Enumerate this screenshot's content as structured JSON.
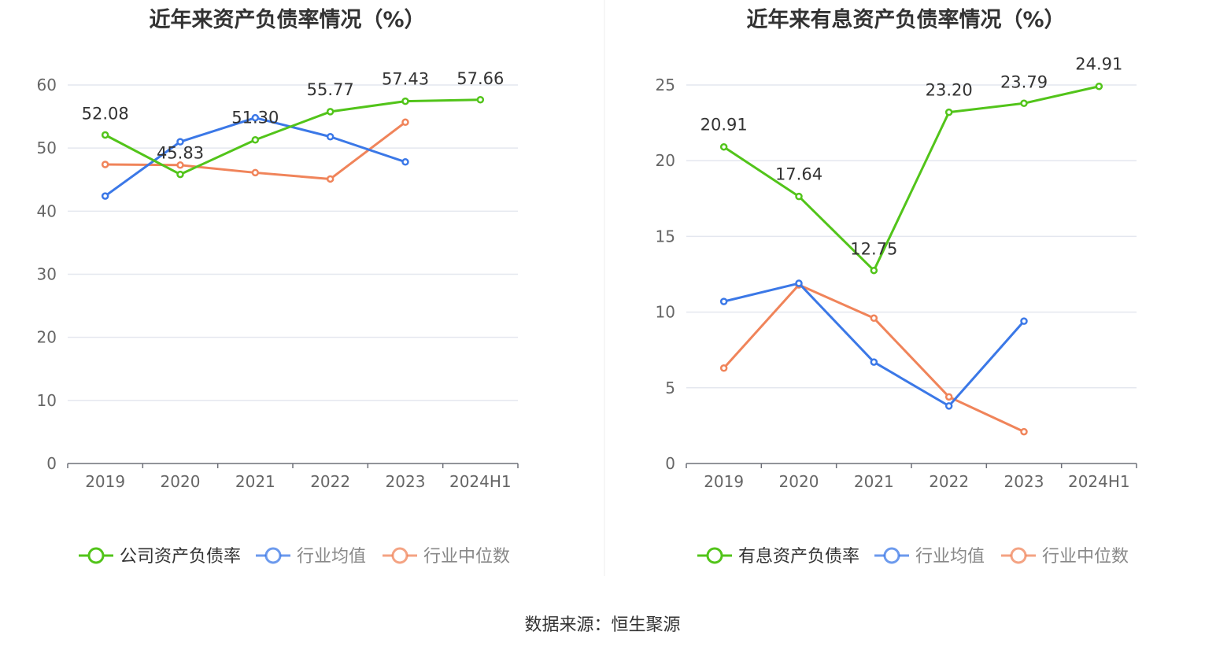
{
  "source_label": "数据来源：恒生聚源",
  "chart_data": [
    {
      "type": "line",
      "title": "近年来资产负债率情况（%）",
      "categories": [
        "2019",
        "2020",
        "2021",
        "2022",
        "2023",
        "2024H1"
      ],
      "ylim": [
        0,
        60
      ],
      "yticks": [
        0,
        10,
        20,
        30,
        40,
        50,
        60
      ],
      "grid": true,
      "legend_position": "bottom",
      "series": [
        {
          "name": "公司资产负债率",
          "color": "#52c41a",
          "values": [
            52.08,
            45.83,
            51.3,
            55.77,
            57.43,
            57.66
          ],
          "labels": [
            "52.08",
            "45.83",
            "51.30",
            "55.77",
            "57.43",
            "57.66"
          ]
        },
        {
          "name": "行业均值",
          "color": "#3b78e7",
          "values": [
            42.4,
            51.0,
            54.8,
            51.8,
            47.8,
            null
          ]
        },
        {
          "name": "行业中位数",
          "color": "#f0845a",
          "values": [
            47.4,
            47.3,
            46.1,
            45.1,
            54.1,
            null
          ]
        }
      ]
    },
    {
      "type": "line",
      "title": "近年来有息资产负债率情况（%）",
      "categories": [
        "2019",
        "2020",
        "2021",
        "2022",
        "2023",
        "2024H1"
      ],
      "ylim": [
        0,
        25
      ],
      "yticks": [
        0,
        5,
        10,
        15,
        20,
        25
      ],
      "grid": true,
      "legend_position": "bottom",
      "series": [
        {
          "name": "有息资产负债率",
          "color": "#52c41a",
          "values": [
            20.91,
            17.64,
            12.75,
            23.2,
            23.79,
            24.91
          ],
          "labels": [
            "20.91",
            "17.64",
            "12.75",
            "23.20",
            "23.79",
            "24.91"
          ]
        },
        {
          "name": "行业均值",
          "color": "#3b78e7",
          "values": [
            10.7,
            11.9,
            6.7,
            3.8,
            9.4,
            null
          ]
        },
        {
          "name": "行业中位数",
          "color": "#f0845a",
          "values": [
            6.3,
            11.8,
            9.6,
            4.4,
            2.1,
            null
          ]
        }
      ]
    }
  ]
}
